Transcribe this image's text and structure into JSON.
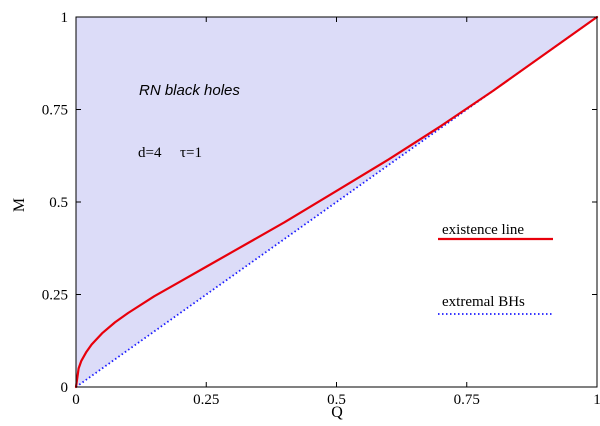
{
  "chart_data": {
    "type": "line",
    "xlabel": "Q",
    "ylabel": "M",
    "xlim": [
      0,
      1
    ],
    "ylim": [
      0,
      1
    ],
    "x_ticks": [
      0,
      0.25,
      0.5,
      0.75,
      1
    ],
    "y_ticks": [
      0,
      0.25,
      0.5,
      0.75,
      1
    ],
    "x_tick_labels": [
      "0",
      "0.25",
      "0.5",
      "0.75",
      "1"
    ],
    "y_tick_labels": [
      "0",
      "0.25",
      "0.5",
      "0.75",
      "1"
    ],
    "grid": false,
    "annotations": {
      "region_label": "RN black holes",
      "params_d": "d=4",
      "params_tau": "τ=1"
    },
    "shaded_region": {
      "color": "#dcdcf8",
      "description_points": [
        [
          0,
          0
        ],
        [
          0,
          1
        ],
        [
          1,
          1
        ]
      ]
    },
    "series": [
      {
        "name": "existence line",
        "color": "#e8000b",
        "style": "solid",
        "x": [
          0,
          0.005,
          0.01,
          0.02,
          0.03,
          0.05,
          0.075,
          0.1,
          0.15,
          0.2,
          0.25,
          0.3,
          0.4,
          0.5,
          0.6,
          0.7,
          0.8,
          0.9,
          1.0
        ],
        "y": [
          0,
          0.05,
          0.07,
          0.095,
          0.115,
          0.145,
          0.175,
          0.2,
          0.245,
          0.285,
          0.325,
          0.365,
          0.445,
          0.53,
          0.615,
          0.705,
          0.8,
          0.9,
          1.0
        ]
      },
      {
        "name": "extremal BHs",
        "color": "#1a1aff",
        "style": "dotted",
        "x": [
          0,
          1
        ],
        "y": [
          0,
          1
        ]
      }
    ],
    "legend": {
      "placement": "right",
      "entries": [
        "existence line",
        "extremal BHs"
      ]
    }
  }
}
